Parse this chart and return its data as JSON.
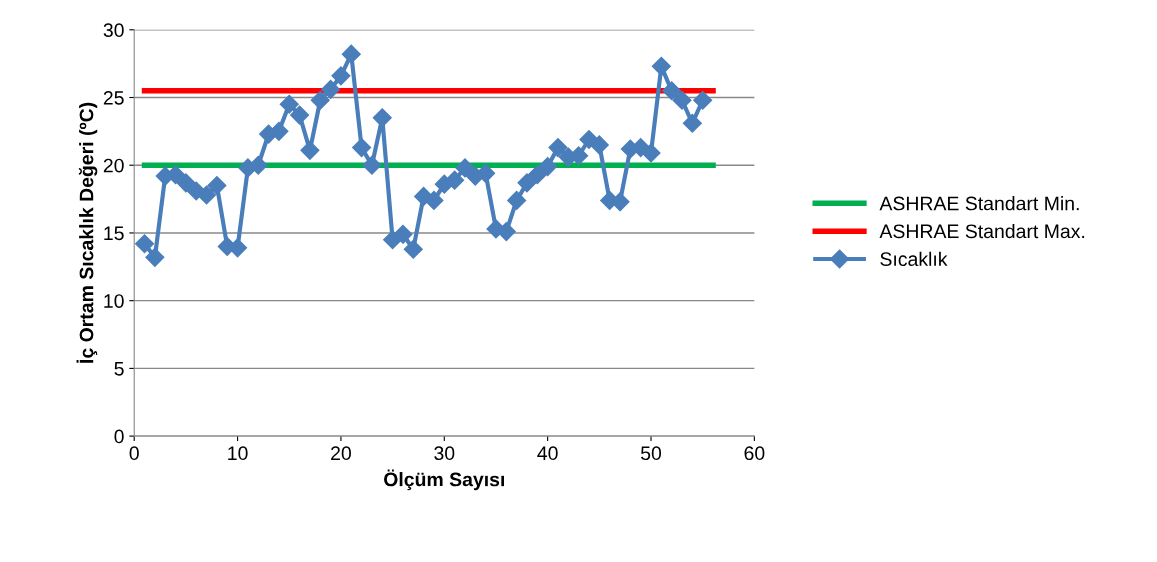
{
  "chart_data": {
    "type": "line",
    "xlabel": "Ölçüm Sayısı",
    "ylabel": "İç Ortam Sıcaklık Değeri (ºC)",
    "xlim": [
      0,
      60
    ],
    "xticks": [
      0,
      10,
      20,
      30,
      40,
      50,
      60
    ],
    "ylim": [
      0,
      30
    ],
    "yticks": [
      0,
      5,
      10,
      15,
      20,
      25,
      30
    ],
    "grid": "y",
    "legend": "right",
    "series": [
      {
        "name": "ASHRAE Standart Min.",
        "color": "#00b050",
        "marker": "none",
        "x": [
          1,
          56
        ],
        "values": [
          20,
          20
        ]
      },
      {
        "name": "ASHRAE Standart Max.",
        "color": "#ff0000",
        "marker": "none",
        "x": [
          1,
          56
        ],
        "values": [
          25.5,
          25.5
        ]
      },
      {
        "name": "Sıcaklık",
        "color": "#4a7ebb",
        "marker": "diamond",
        "x": [
          1,
          2,
          3,
          4,
          5,
          6,
          7,
          8,
          9,
          10,
          11,
          12,
          13,
          14,
          15,
          16,
          17,
          18,
          19,
          20,
          21,
          22,
          23,
          24,
          25,
          26,
          27,
          28,
          29,
          30,
          31,
          32,
          33,
          34,
          35,
          36,
          37,
          38,
          39,
          40,
          41,
          42,
          43,
          44,
          45,
          46,
          47,
          48,
          49,
          50,
          51,
          52,
          53,
          54,
          55
        ],
        "values": [
          14.2,
          13.2,
          19.2,
          19.3,
          18.7,
          18.1,
          17.8,
          18.5,
          14.0,
          13.9,
          19.8,
          20.0,
          22.3,
          22.5,
          24.5,
          23.7,
          21.1,
          24.8,
          25.6,
          26.6,
          28.2,
          21.3,
          20.0,
          23.5,
          14.5,
          14.9,
          13.8,
          17.7,
          17.4,
          18.6,
          18.9,
          19.8,
          19.2,
          19.4,
          15.3,
          15.1,
          17.4,
          18.7,
          19.3,
          19.9,
          21.3,
          20.6,
          20.7,
          21.9,
          21.5,
          17.4,
          17.3,
          21.2,
          21.3,
          20.9,
          27.3,
          25.5,
          24.8,
          23.1,
          24.8
        ]
      }
    ]
  }
}
